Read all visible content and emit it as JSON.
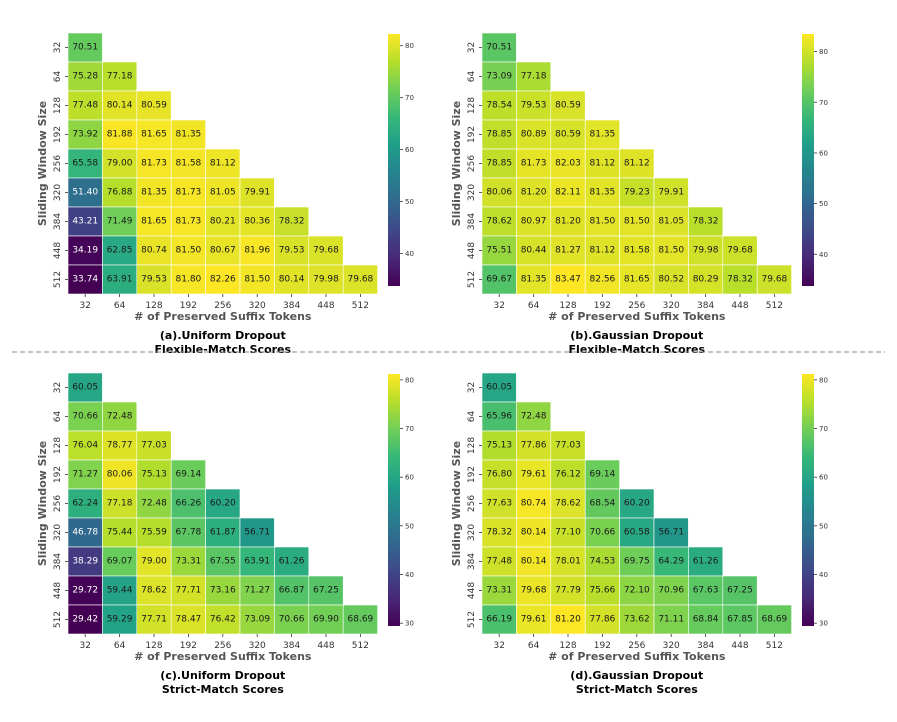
{
  "figure": {
    "x_axis_label": "# of Preserved Suffix Tokens",
    "y_axis_label": "Sliding Window Size",
    "colormap": [
      "#440154",
      "#482878",
      "#3e4989",
      "#31688e",
      "#26828e",
      "#1f9e89",
      "#35b779",
      "#6ece58",
      "#b5de2b",
      "#fde725"
    ]
  },
  "chart_data": [
    {
      "type": "heatmap",
      "caption_line1": "(a).Uniform Dropout",
      "caption_line2": "Flexible-Match Scores",
      "xlabel": "# of Preserved Suffix Tokens",
      "ylabel": "Sliding Window Size",
      "x_categories": [
        "32",
        "64",
        "128",
        "192",
        "256",
        "320",
        "384",
        "448",
        "512"
      ],
      "y_categories": [
        "32",
        "64",
        "128",
        "192",
        "256",
        "320",
        "384",
        "448",
        "512"
      ],
      "values": [
        [
          70.51
        ],
        [
          75.28,
          77.18
        ],
        [
          77.48,
          80.14,
          80.59
        ],
        [
          73.92,
          81.88,
          81.65,
          81.35
        ],
        [
          65.58,
          79.0,
          81.73,
          81.58,
          81.12
        ],
        [
          51.4,
          76.88,
          81.35,
          81.73,
          81.05,
          79.91
        ],
        [
          43.21,
          71.49,
          81.65,
          81.73,
          80.21,
          80.36,
          78.32
        ],
        [
          34.19,
          62.85,
          80.74,
          81.5,
          80.67,
          81.96,
          79.53,
          79.68
        ],
        [
          33.74,
          63.91,
          79.53,
          81.8,
          82.26,
          81.5,
          80.14,
          79.98,
          79.68
        ]
      ],
      "vmin": 33.74,
      "vmax": 82.26,
      "colorbar_ticks": [
        "40",
        "50",
        "60",
        "70",
        "80"
      ]
    },
    {
      "type": "heatmap",
      "caption_line1": "(b).Gaussian Dropout",
      "caption_line2": "Flexible-Match Scores",
      "xlabel": "# of Preserved Suffix Tokens",
      "ylabel": "Sliding Window Size",
      "x_categories": [
        "32",
        "64",
        "128",
        "192",
        "256",
        "320",
        "384",
        "448",
        "512"
      ],
      "y_categories": [
        "32",
        "64",
        "128",
        "192",
        "256",
        "320",
        "384",
        "448",
        "512"
      ],
      "values": [
        [
          70.51
        ],
        [
          73.09,
          77.18
        ],
        [
          78.54,
          79.53,
          80.59
        ],
        [
          78.85,
          80.89,
          80.59,
          81.35
        ],
        [
          78.85,
          81.73,
          82.03,
          81.12,
          81.12
        ],
        [
          80.06,
          81.2,
          82.11,
          81.35,
          79.23,
          79.91
        ],
        [
          78.62,
          80.97,
          81.2,
          81.5,
          81.5,
          81.05,
          78.32
        ],
        [
          75.51,
          80.44,
          81.27,
          81.12,
          81.58,
          81.5,
          79.98,
          79.68
        ],
        [
          69.67,
          81.35,
          83.47,
          82.56,
          81.65,
          80.52,
          80.29,
          78.32,
          79.68
        ]
      ],
      "vmin": 33.74,
      "vmax": 83.47,
      "colorbar_ticks": [
        "40",
        "50",
        "60",
        "70",
        "80"
      ]
    },
    {
      "type": "heatmap",
      "caption_line1": "(c).Uniform Dropout",
      "caption_line2": "Strict-Match Scores",
      "xlabel": "# of Preserved Suffix Tokens",
      "ylabel": "Sliding Window Size",
      "x_categories": [
        "32",
        "64",
        "128",
        "192",
        "256",
        "320",
        "384",
        "448",
        "512"
      ],
      "y_categories": [
        "32",
        "64",
        "128",
        "192",
        "256",
        "320",
        "384",
        "448",
        "512"
      ],
      "values": [
        [
          60.05
        ],
        [
          70.66,
          72.48
        ],
        [
          76.04,
          78.77,
          77.03
        ],
        [
          71.27,
          80.06,
          75.13,
          69.14
        ],
        [
          62.24,
          77.18,
          72.48,
          66.26,
          60.2
        ],
        [
          46.78,
          75.44,
          75.59,
          67.78,
          61.87,
          56.71
        ],
        [
          38.29,
          69.07,
          79.0,
          73.31,
          67.55,
          63.91,
          61.26
        ],
        [
          29.72,
          59.44,
          78.62,
          77.71,
          73.16,
          71.27,
          66.87,
          67.25
        ],
        [
          29.42,
          59.29,
          77.71,
          78.47,
          76.42,
          73.09,
          70.66,
          69.9,
          68.69
        ]
      ],
      "vmin": 29.42,
      "vmax": 81.2,
      "colorbar_ticks": [
        "30",
        "40",
        "50",
        "60",
        "70",
        "80"
      ]
    },
    {
      "type": "heatmap",
      "caption_line1": "(d).Gaussian Dropout",
      "caption_line2": "Strict-Match Scores",
      "xlabel": "# of Preserved Suffix Tokens",
      "ylabel": "Sliding Window Size",
      "x_categories": [
        "32",
        "64",
        "128",
        "192",
        "256",
        "320",
        "384",
        "448",
        "512"
      ],
      "y_categories": [
        "32",
        "64",
        "128",
        "192",
        "256",
        "320",
        "384",
        "448",
        "512"
      ],
      "values": [
        [
          60.05
        ],
        [
          65.96,
          72.48
        ],
        [
          75.13,
          77.86,
          77.03
        ],
        [
          76.8,
          79.61,
          76.12,
          69.14
        ],
        [
          77.63,
          80.74,
          78.62,
          68.54,
          60.2
        ],
        [
          78.32,
          80.14,
          77.1,
          70.66,
          60.58,
          56.71
        ],
        [
          77.48,
          80.14,
          78.01,
          74.53,
          69.75,
          64.29,
          61.26
        ],
        [
          73.31,
          79.68,
          77.79,
          75.66,
          72.1,
          70.96,
          67.63,
          67.25
        ],
        [
          66.19,
          79.61,
          81.2,
          77.86,
          73.62,
          71.11,
          68.84,
          67.85,
          68.69
        ]
      ],
      "vmin": 29.42,
      "vmax": 81.2,
      "colorbar_ticks": [
        "30",
        "40",
        "50",
        "60",
        "70",
        "80"
      ]
    }
  ]
}
